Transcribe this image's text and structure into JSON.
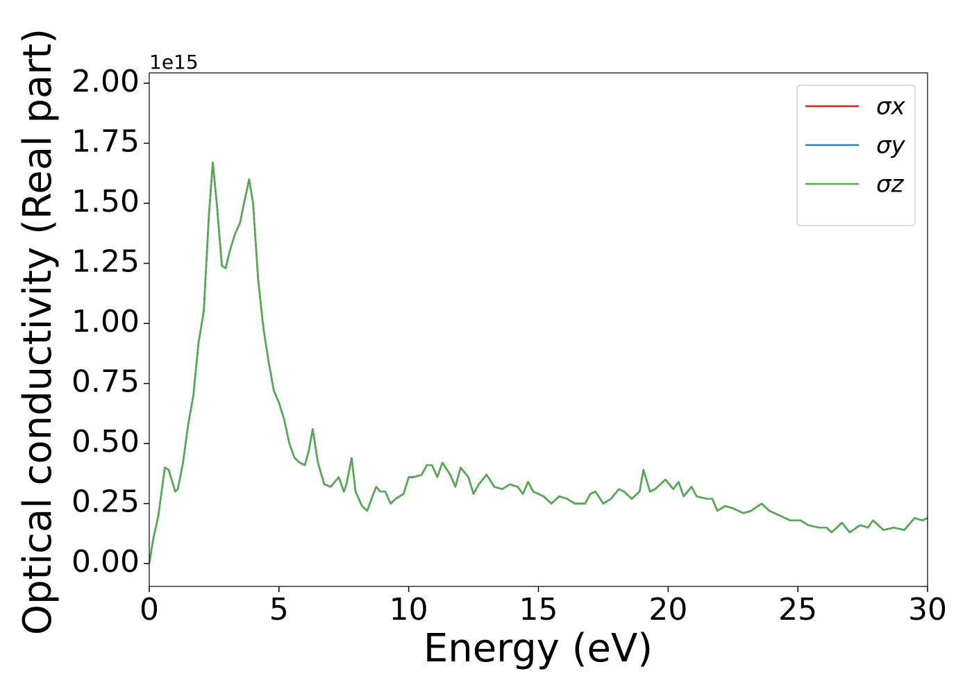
{
  "chart_data": {
    "type": "line",
    "x_label": "Energy (eV)",
    "y_label": "Optical conductivity (Real part)",
    "y_offset_label": "1e15",
    "x": [
      0,
      0.15,
      0.35,
      0.6,
      0.75,
      1.0,
      1.1,
      1.3,
      1.5,
      1.7,
      1.9,
      2.1,
      2.3,
      2.45,
      2.6,
      2.8,
      2.95,
      3.1,
      3.3,
      3.5,
      3.65,
      3.85,
      4.0,
      4.2,
      4.4,
      4.6,
      4.8,
      5.0,
      5.2,
      5.4,
      5.6,
      5.8,
      6.0,
      6.15,
      6.3,
      6.5,
      6.75,
      7.0,
      7.3,
      7.5,
      7.6,
      7.8,
      7.95,
      8.2,
      8.4,
      8.6,
      8.75,
      8.9,
      9.1,
      9.3,
      9.5,
      9.8,
      10.0,
      10.2,
      10.5,
      10.7,
      10.9,
      11.1,
      11.3,
      11.6,
      11.8,
      12.0,
      12.3,
      12.5,
      12.7,
      13.0,
      13.3,
      13.6,
      13.9,
      14.2,
      14.4,
      14.6,
      14.8,
      15.0,
      15.2,
      15.5,
      15.8,
      16.1,
      16.4,
      16.8,
      17.0,
      17.2,
      17.5,
      17.8,
      18.1,
      18.3,
      18.6,
      18.9,
      19.05,
      19.3,
      19.5,
      19.9,
      20.2,
      20.4,
      20.6,
      20.9,
      21.1,
      21.5,
      21.7,
      21.9,
      22.2,
      22.5,
      22.9,
      23.2,
      23.6,
      23.9,
      24.3,
      24.7,
      25.1,
      25.4,
      25.8,
      26.1,
      26.3,
      26.7,
      27.0,
      27.4,
      27.7,
      27.9,
      28.3,
      28.7,
      29.1,
      29.5,
      29.8,
      30.0
    ],
    "series": [
      {
        "name": "σx",
        "color": "#e41a1c",
        "values": [
          0.0,
          0.1,
          0.2,
          0.4,
          0.39,
          0.3,
          0.31,
          0.42,
          0.58,
          0.7,
          0.92,
          1.05,
          1.45,
          1.67,
          1.5,
          1.24,
          1.23,
          1.3,
          1.37,
          1.42,
          1.5,
          1.6,
          1.5,
          1.18,
          0.98,
          0.84,
          0.72,
          0.67,
          0.6,
          0.5,
          0.44,
          0.42,
          0.41,
          0.47,
          0.56,
          0.42,
          0.33,
          0.32,
          0.36,
          0.3,
          0.33,
          0.44,
          0.3,
          0.24,
          0.22,
          0.28,
          0.32,
          0.3,
          0.3,
          0.25,
          0.27,
          0.29,
          0.36,
          0.36,
          0.37,
          0.41,
          0.41,
          0.36,
          0.42,
          0.37,
          0.32,
          0.4,
          0.36,
          0.29,
          0.33,
          0.37,
          0.32,
          0.31,
          0.33,
          0.32,
          0.29,
          0.34,
          0.3,
          0.29,
          0.28,
          0.25,
          0.28,
          0.27,
          0.25,
          0.25,
          0.29,
          0.3,
          0.25,
          0.27,
          0.31,
          0.3,
          0.27,
          0.3,
          0.39,
          0.3,
          0.31,
          0.35,
          0.31,
          0.34,
          0.28,
          0.32,
          0.28,
          0.27,
          0.27,
          0.22,
          0.24,
          0.23,
          0.21,
          0.22,
          0.25,
          0.22,
          0.2,
          0.18,
          0.18,
          0.16,
          0.15,
          0.15,
          0.13,
          0.17,
          0.13,
          0.16,
          0.15,
          0.18,
          0.14,
          0.15,
          0.14,
          0.19,
          0.18,
          0.19
        ]
      },
      {
        "name": "σy",
        "color": "#377eb8",
        "values": [
          0.0,
          0.1,
          0.2,
          0.4,
          0.39,
          0.3,
          0.31,
          0.42,
          0.58,
          0.7,
          0.92,
          1.05,
          1.45,
          1.67,
          1.5,
          1.24,
          1.23,
          1.3,
          1.37,
          1.42,
          1.5,
          1.6,
          1.5,
          1.18,
          0.98,
          0.84,
          0.72,
          0.67,
          0.6,
          0.5,
          0.44,
          0.42,
          0.41,
          0.47,
          0.56,
          0.42,
          0.33,
          0.32,
          0.36,
          0.3,
          0.33,
          0.44,
          0.3,
          0.24,
          0.22,
          0.28,
          0.32,
          0.3,
          0.3,
          0.25,
          0.27,
          0.29,
          0.36,
          0.36,
          0.37,
          0.41,
          0.41,
          0.36,
          0.42,
          0.37,
          0.32,
          0.4,
          0.36,
          0.29,
          0.33,
          0.37,
          0.32,
          0.31,
          0.33,
          0.32,
          0.29,
          0.34,
          0.3,
          0.29,
          0.28,
          0.25,
          0.28,
          0.27,
          0.25,
          0.25,
          0.29,
          0.3,
          0.25,
          0.27,
          0.31,
          0.3,
          0.27,
          0.3,
          0.39,
          0.3,
          0.31,
          0.35,
          0.31,
          0.34,
          0.28,
          0.32,
          0.28,
          0.27,
          0.27,
          0.22,
          0.24,
          0.23,
          0.21,
          0.22,
          0.25,
          0.22,
          0.2,
          0.18,
          0.18,
          0.16,
          0.15,
          0.15,
          0.13,
          0.17,
          0.13,
          0.16,
          0.15,
          0.18,
          0.14,
          0.15,
          0.14,
          0.19,
          0.18,
          0.19
        ]
      },
      {
        "name": "σz",
        "color": "#4daf4a",
        "values": [
          0.0,
          0.1,
          0.2,
          0.4,
          0.39,
          0.3,
          0.31,
          0.42,
          0.58,
          0.7,
          0.92,
          1.05,
          1.45,
          1.67,
          1.5,
          1.24,
          1.23,
          1.3,
          1.37,
          1.42,
          1.5,
          1.6,
          1.5,
          1.18,
          0.98,
          0.84,
          0.72,
          0.67,
          0.6,
          0.5,
          0.44,
          0.42,
          0.41,
          0.47,
          0.56,
          0.42,
          0.33,
          0.32,
          0.36,
          0.3,
          0.33,
          0.44,
          0.3,
          0.24,
          0.22,
          0.28,
          0.32,
          0.3,
          0.3,
          0.25,
          0.27,
          0.29,
          0.36,
          0.36,
          0.37,
          0.41,
          0.41,
          0.36,
          0.42,
          0.37,
          0.32,
          0.4,
          0.36,
          0.29,
          0.33,
          0.37,
          0.32,
          0.31,
          0.33,
          0.32,
          0.29,
          0.34,
          0.3,
          0.29,
          0.28,
          0.25,
          0.28,
          0.27,
          0.25,
          0.25,
          0.29,
          0.3,
          0.25,
          0.27,
          0.31,
          0.3,
          0.27,
          0.3,
          0.39,
          0.3,
          0.31,
          0.35,
          0.31,
          0.34,
          0.28,
          0.32,
          0.28,
          0.27,
          0.27,
          0.22,
          0.24,
          0.23,
          0.21,
          0.22,
          0.25,
          0.22,
          0.2,
          0.18,
          0.18,
          0.16,
          0.15,
          0.15,
          0.13,
          0.17,
          0.13,
          0.16,
          0.15,
          0.18,
          0.14,
          0.15,
          0.14,
          0.19,
          0.18,
          0.19
        ]
      }
    ],
    "xlim": [
      0,
      30
    ],
    "xticks": [
      0,
      5,
      10,
      15,
      20,
      25,
      30
    ],
    "ylim": [
      -0.095,
      2.043
    ],
    "yticks": [
      {
        "value": 0,
        "label": "0.00"
      },
      0.25,
      {
        "value": 0.5,
        "label": "0.50"
      },
      0.75,
      {
        "value": 1,
        "label": "1.00"
      },
      1.25,
      {
        "value": 1.5,
        "label": "1.50"
      },
      1.75,
      {
        "value": 2,
        "label": "2.00"
      }
    ],
    "grid": false,
    "legend": "upper right"
  }
}
